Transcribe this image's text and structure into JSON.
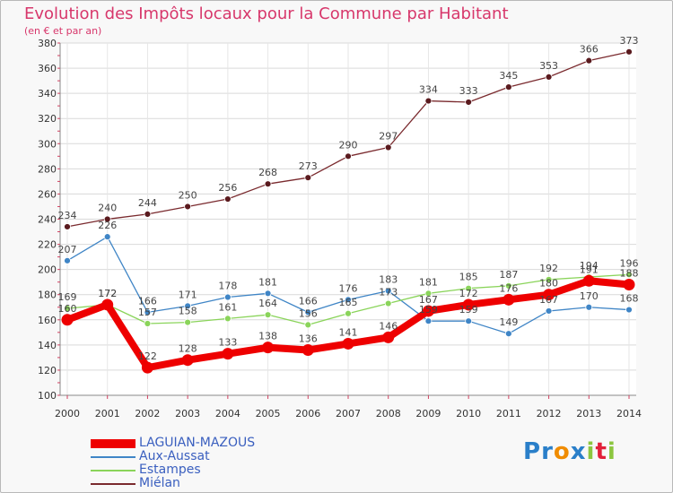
{
  "chart_data": {
    "type": "line",
    "title": "Evolution des Impôts locaux pour la Commune par Habitant",
    "subtitle": "(en € et par an)",
    "xlabel": "",
    "ylabel": "",
    "ylim": [
      100,
      380
    ],
    "yticks": [
      "100",
      "120",
      "140",
      "160",
      "180",
      "200",
      "220",
      "240",
      "260",
      "280",
      "300",
      "320",
      "340",
      "360",
      "380"
    ],
    "ytick_values": [
      100,
      120,
      140,
      160,
      180,
      200,
      220,
      240,
      260,
      280,
      300,
      320,
      340,
      360,
      380
    ],
    "categories": [
      "2000",
      "2001",
      "2002",
      "2003",
      "2004",
      "2005",
      "2006",
      "2007",
      "2008",
      "2009",
      "2010",
      "2011",
      "2012",
      "2013",
      "2014"
    ],
    "series": [
      {
        "name": "Miélan",
        "color": "#7a2a2e",
        "values": [
          234,
          240,
          244,
          250,
          256,
          268,
          273,
          290,
          297,
          334,
          333,
          345,
          353,
          366,
          373
        ]
      },
      {
        "name": "Aux-Aussat",
        "color": "#3f85c6",
        "values": [
          207,
          226,
          166,
          171,
          178,
          181,
          166,
          176,
          183,
          159,
          159,
          149,
          167,
          170,
          168
        ]
      },
      {
        "name": "Estampes",
        "color": "#8ad45a",
        "values": [
          169,
          172,
          157,
          158,
          161,
          164,
          156,
          165,
          173,
          181,
          185,
          187,
          192,
          194,
          196
        ]
      },
      {
        "name": "LAGUIAN-MAZOUS",
        "color": "#ee0000",
        "values": [
          160,
          172,
          122,
          128,
          133,
          138,
          136,
          141,
          146,
          167,
          172,
          176,
          180,
          191,
          188
        ]
      }
    ],
    "data_labels": {
      "Miélan": [
        "234",
        "240",
        "244",
        "250",
        "256",
        "268",
        "273",
        "290",
        "297",
        "334",
        "333",
        "345",
        "353",
        "366",
        "373"
      ],
      "Aux-Aussat": [
        "207",
        "226",
        "166",
        "171",
        "178",
        "181",
        "166",
        "176",
        "183",
        "159",
        "159",
        "149",
        "167",
        "170",
        "168"
      ],
      "Estampes": [
        "169",
        "172",
        "157",
        "158",
        "161",
        "164",
        "156",
        "165",
        "173",
        "181",
        "185",
        "187",
        "192",
        "194",
        "196"
      ],
      "LAGUIAN-MAZOUS": [
        "160",
        "172",
        "122",
        "128",
        "133",
        "138",
        "136",
        "141",
        "146",
        "167",
        "172",
        "176",
        "180",
        "191",
        "188"
      ]
    },
    "legend": [
      "LAGUIAN-MAZOUS",
      "Aux-Aussat",
      "Estampes",
      "Miélan"
    ],
    "legend_position": "bottom-left",
    "grid": true
  },
  "brand": {
    "letters": [
      "P",
      "r",
      "o",
      "x",
      "i",
      "t",
      "i"
    ],
    "colors": [
      "#2a7fc9",
      "#2a7fc9",
      "#f08c00",
      "#2a7fc9",
      "#8cc63f",
      "#e2203a",
      "#8cc63f"
    ]
  }
}
